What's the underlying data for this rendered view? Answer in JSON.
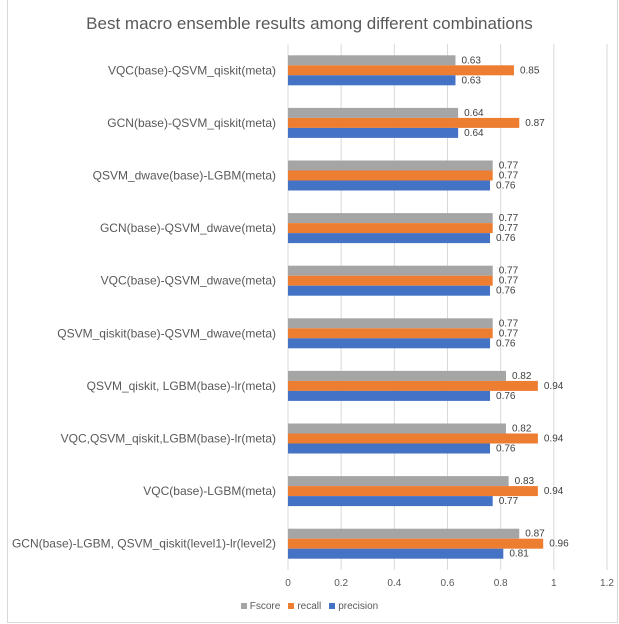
{
  "chart_data": {
    "type": "bar",
    "orientation": "horizontal",
    "title": "Best macro ensemble results among different combinations",
    "categories": [
      "VQC(base)-QSVM_qiskit(meta)",
      "GCN(base)-QSVM_qiskit(meta)",
      "QSVM_dwave(base)-LGBM(meta)",
      "GCN(base)-QSVM_dwave(meta)",
      "VQC(base)-QSVM_dwave(meta)",
      "QSVM_qiskit(base)-QSVM_dwave(meta)",
      "QSVM_qiskit, LGBM(base)-lr(meta)",
      "VQC,QSVM_qiskit,LGBM(base)-lr(meta)",
      "VQC(base)-LGBM(meta)",
      "GCN(base)-LGBM, QSVM_qiskit(level1)-lr(level2)"
    ],
    "series": [
      {
        "name": "Fscore",
        "color": "#a5a5a5",
        "values": [
          0.63,
          0.64,
          0.77,
          0.77,
          0.77,
          0.77,
          0.82,
          0.82,
          0.83,
          0.87
        ]
      },
      {
        "name": "recall",
        "color": "#ed7d31",
        "values": [
          0.85,
          0.87,
          0.77,
          0.77,
          0.77,
          0.77,
          0.94,
          0.94,
          0.94,
          0.96
        ]
      },
      {
        "name": "precision",
        "color": "#4472c4",
        "values": [
          0.63,
          0.64,
          0.76,
          0.76,
          0.76,
          0.76,
          0.76,
          0.76,
          0.77,
          0.81
        ]
      }
    ],
    "xlim": [
      0,
      1.2
    ],
    "xticks": [
      "0",
      "0.2",
      "0.4",
      "0.6",
      "0.8",
      "1",
      "1.2"
    ],
    "grid": true,
    "legend_position": "bottom"
  }
}
